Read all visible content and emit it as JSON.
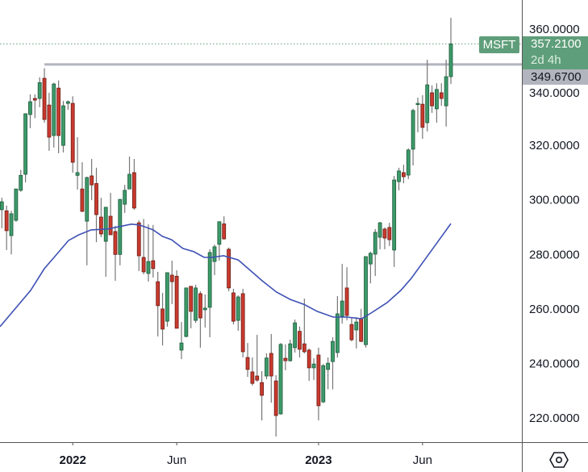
{
  "symbol": "MSFT",
  "last_price_label": "357.2100",
  "countdown": "2d 4h",
  "level_label": "349.6700",
  "settings_icon": "hexagon-settings-icon",
  "colors": {
    "up": "#3d9a6a",
    "down": "#c93a2e",
    "up_border": "#1e5b3c",
    "down_border": "#6d1d15",
    "ma": "#3f51b5",
    "level_line": "#b2b5be",
    "last_tag": "#5f9e7a"
  },
  "chart_data": {
    "type": "candlestick",
    "title": "",
    "xlabel": "",
    "ylabel": "",
    "ylim": [
      216,
      374
    ],
    "yticks": [
      360,
      340,
      320,
      300,
      280,
      260,
      240,
      220
    ],
    "ytick_labels": [
      "360.0000",
      "340.0000",
      "320.0000",
      "300.0000",
      "280.0000",
      "260.0000",
      "240.0000",
      "220.0000"
    ],
    "xticks": [
      {
        "label": "2022",
        "index": 15
      },
      {
        "label": "Jun",
        "index": 37
      },
      {
        "label": "2023",
        "index": 67
      },
      {
        "label": "Jun",
        "index": 89
      }
    ],
    "horizontal_level": {
      "value": 349.67,
      "from_index": 9
    },
    "last_price": 357.21,
    "candles": [
      [
        296.4,
        300.8,
        289.6,
        299.3
      ],
      [
        296,
        297.9,
        281.6,
        288.7
      ],
      [
        286.9,
        296,
        280,
        294.9
      ],
      [
        292.5,
        304,
        292,
        304
      ],
      [
        303.5,
        311,
        303,
        309
      ],
      [
        309.4,
        331.6,
        306.4,
        331.6
      ],
      [
        331.3,
        338.7,
        326.3,
        336
      ],
      [
        337.2,
        338.7,
        330,
        336.6
      ],
      [
        337.2,
        345,
        334,
        343
      ],
      [
        344.6,
        348.3,
        328.3,
        329.5
      ],
      [
        334.8,
        339.3,
        318,
        323
      ],
      [
        323.6,
        343,
        319.2,
        342.5
      ],
      [
        341,
        343.8,
        317.1,
        323.6
      ],
      [
        320,
        336.3,
        317.4,
        334.5
      ],
      [
        335.4,
        336.5,
        333,
        336
      ],
      [
        335.4,
        338,
        310,
        313.8
      ],
      [
        309,
        323,
        303.8,
        310
      ],
      [
        304,
        313.8,
        295.5,
        295.8
      ],
      [
        292.2,
        308.5,
        276,
        308.2
      ],
      [
        308.8,
        315,
        299.9,
        305.5
      ],
      [
        306,
        311.8,
        284.5,
        294.6
      ],
      [
        293.7,
        300.8,
        286.3,
        287.5
      ],
      [
        284.8,
        297.3,
        271.8,
        297.3
      ],
      [
        294,
        302.6,
        287.2,
        287.2
      ],
      [
        288.4,
        290.5,
        270.3,
        280
      ],
      [
        280,
        300.2,
        276,
        300.2
      ],
      [
        298.4,
        305.5,
        295.2,
        303.5
      ],
      [
        304,
        315.9,
        304,
        309.4
      ],
      [
        310,
        315,
        296.4,
        297
      ],
      [
        291.6,
        292.5,
        273.9,
        279.5
      ],
      [
        278.9,
        293,
        272.7,
        273.6
      ],
      [
        273,
        291,
        270,
        277.4
      ],
      [
        277.7,
        290.8,
        271.5,
        274.8
      ],
      [
        270,
        273.6,
        249.9,
        261.2
      ],
      [
        260,
        265.9,
        246.6,
        252.6
      ],
      [
        255.5,
        273.3,
        253.5,
        273.3
      ],
      [
        272.4,
        277.7,
        261.8,
        270
      ],
      [
        272,
        274.2,
        252.9,
        252.9
      ],
      [
        244.9,
        255.2,
        241.6,
        247.5
      ],
      [
        249.9,
        267.7,
        249.6,
        267.7
      ],
      [
        268.3,
        268.3,
        252.9,
        259.1
      ],
      [
        255.8,
        268.9,
        254.9,
        267.7
      ],
      [
        265.6,
        266.5,
        245.8,
        256.7
      ],
      [
        259.7,
        265.3,
        253.2,
        260.3
      ],
      [
        260.6,
        281.9,
        249.6,
        280.7
      ],
      [
        277.4,
        283.6,
        272.4,
        282.8
      ],
      [
        283.7,
        292,
        277.7,
        292
      ],
      [
        291.2,
        294,
        285.4,
        285.7
      ],
      [
        281.9,
        282.5,
        266.5,
        267.7
      ],
      [
        265.9,
        267.4,
        254.3,
        255.5
      ],
      [
        255.8,
        265,
        252,
        264.4
      ],
      [
        265.6,
        267.4,
        242.2,
        244.3
      ],
      [
        242.2,
        247.5,
        235.1,
        237.8
      ],
      [
        236.9,
        242.2,
        231.9,
        232.7
      ],
      [
        235.4,
        250.5,
        233.3,
        233.9
      ],
      [
        233,
        237.2,
        219.1,
        228.3
      ],
      [
        235.4,
        243.7,
        234.2,
        242
      ],
      [
        243.7,
        250.8,
        225.6,
        235.4
      ],
      [
        233.6,
        235.7,
        213.2,
        220.9
      ],
      [
        221.5,
        247.5,
        221.2,
        247
      ],
      [
        241.9,
        247,
        237.5,
        241
      ],
      [
        241,
        248.7,
        240.7,
        247.2
      ],
      [
        245.8,
        256.1,
        244,
        254.9
      ],
      [
        251.8,
        253.6,
        242.2,
        245.2
      ],
      [
        247.2,
        263.8,
        243.7,
        244.3
      ],
      [
        244.9,
        245.5,
        233.6,
        238.4
      ],
      [
        238.4,
        241.9,
        233.9,
        239.8
      ],
      [
        243.1,
        245.8,
        219.1,
        224.5
      ],
      [
        225.9,
        239.8,
        225.5,
        239.2
      ],
      [
        237.8,
        242.2,
        230.5,
        240.1
      ],
      [
        240.7,
        249.6,
        230.5,
        248.1
      ],
      [
        244,
        264.7,
        242.2,
        258.2
      ],
      [
        257.3,
        276.5,
        254.6,
        262.9
      ],
      [
        267.7,
        275.3,
        255.8,
        257.6
      ],
      [
        254.3,
        257,
        248.1,
        248.7
      ],
      [
        252.3,
        257,
        245.5,
        255.2
      ],
      [
        256.4,
        260,
        247.8,
        248.1
      ],
      [
        246.9,
        279.2,
        245.8,
        279.2
      ],
      [
        276.5,
        281,
        269.4,
        280.4
      ],
      [
        280.1,
        289.3,
        272.1,
        288.1
      ],
      [
        286.3,
        291.9,
        281.9,
        291.6
      ],
      [
        289.3,
        289.9,
        281.9,
        286
      ],
      [
        289.9,
        291.6,
        283.1,
        285.4
      ],
      [
        281.6,
        308.8,
        275.4,
        307.3
      ],
      [
        306.7,
        311.8,
        303.5,
        310.6
      ],
      [
        310,
        312.9,
        306.1,
        308.5
      ],
      [
        309.1,
        318.9,
        307.6,
        318.3
      ],
      [
        318.6,
        333.4,
        312.6,
        332.8
      ],
      [
        335.1,
        337.5,
        324.8,
        335.4
      ],
      [
        335.1,
        338.4,
        322.4,
        326.6
      ],
      [
        328.3,
        351.4,
        325.1,
        342.2
      ],
      [
        339.3,
        342,
        331.9,
        334.5
      ],
      [
        333.4,
        342.8,
        328.3,
        340.5
      ],
      [
        339.3,
        342.8,
        334.5,
        337.2
      ],
      [
        334.5,
        351.4,
        326.9,
        345.2
      ],
      [
        345.2,
        366.8,
        342.5,
        357.21
      ]
    ],
    "moving_average": [
      [
        -0.4,
        253.5
      ],
      [
        6.1,
        266.8
      ],
      [
        9,
        274.8
      ],
      [
        11.2,
        279.2
      ],
      [
        14.1,
        285.1
      ],
      [
        16.3,
        287.2
      ],
      [
        18.9,
        289
      ],
      [
        22.3,
        289.3
      ],
      [
        27.4,
        291.1
      ],
      [
        29.1,
        290.8
      ],
      [
        32,
        289
      ],
      [
        34,
        286.6
      ],
      [
        35.9,
        285.4
      ],
      [
        38.3,
        282.2
      ],
      [
        40.6,
        281
      ],
      [
        42.8,
        278.9
      ],
      [
        44.5,
        278.9
      ],
      [
        46.9,
        279.5
      ],
      [
        50,
        278
      ],
      [
        52.5,
        274.2
      ],
      [
        55.1,
        270.3
      ],
      [
        58.1,
        266.2
      ],
      [
        61,
        263.5
      ],
      [
        63.9,
        261.7
      ],
      [
        66.7,
        259.1
      ],
      [
        70.1,
        257
      ],
      [
        73,
        257
      ],
      [
        76.1,
        256.4
      ],
      [
        78.1,
        258.5
      ],
      [
        81.5,
        262.3
      ],
      [
        84.4,
        266.8
      ],
      [
        86.6,
        271.2
      ],
      [
        91.8,
        283.6
      ],
      [
        95,
        291.3
      ]
    ]
  }
}
